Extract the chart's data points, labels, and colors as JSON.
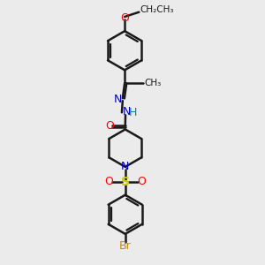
{
  "bg_color": "#ebebeb",
  "bond_color": "#1a1a1a",
  "bond_width": 1.8,
  "figsize": [
    3.0,
    3.0
  ],
  "dpi": 100,
  "colors": {
    "O": "#ff0000",
    "N": "#0000cc",
    "S": "#cccc00",
    "Br": "#cc8800",
    "H": "#008888",
    "C": "#1a1a1a"
  }
}
